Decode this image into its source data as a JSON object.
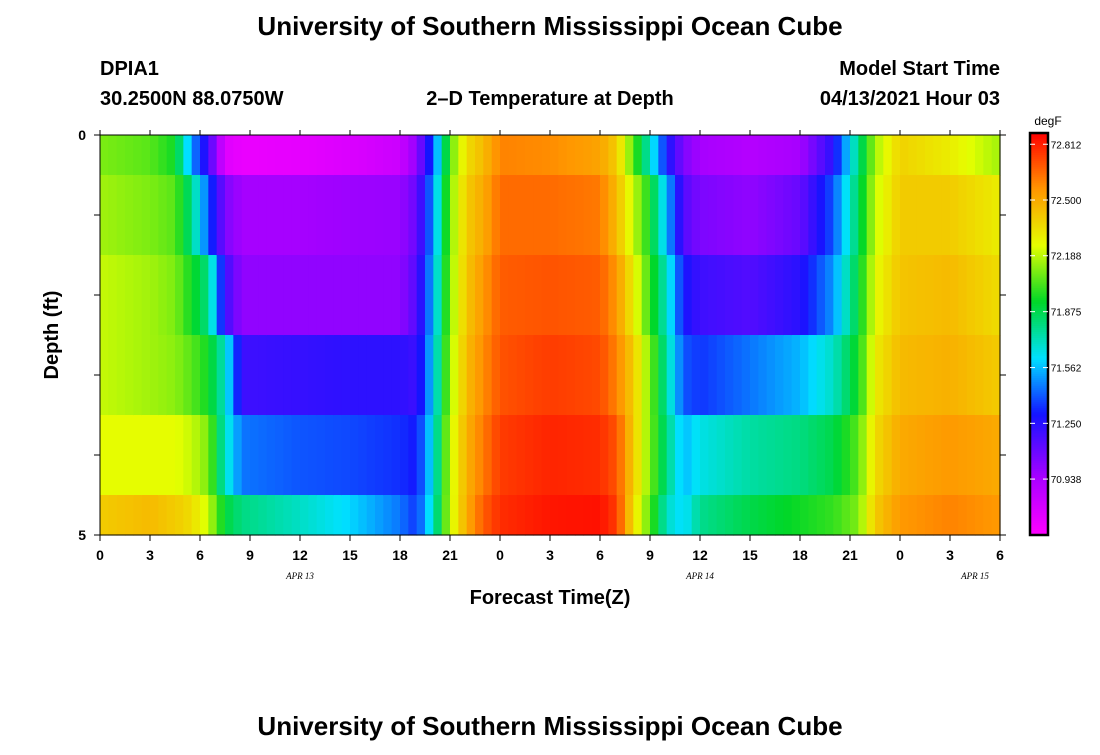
{
  "header": {
    "title": "University of Southern Mississippi Ocean Cube",
    "station_id": "DPIA1",
    "coordinates": "30.2500N  88.0750W",
    "subtitle": "2–D Temperature at Depth",
    "model_start_label": "Model Start Time",
    "model_start_value": "04/13/2021 Hour 03",
    "footer_title": "University of Southern Mississippi Ocean Cube"
  },
  "chart_data": {
    "type": "heatmap",
    "title": "2–D Temperature at Depth",
    "xlabel": "Forecast Time(Z)",
    "ylabel": "Depth (ft)",
    "x_ticks": [
      "0",
      "3",
      "6",
      "9",
      "12",
      "15",
      "18",
      "21",
      "0",
      "3",
      "6",
      "9",
      "12",
      "15",
      "18",
      "21",
      "0",
      "3",
      "6"
    ],
    "x_dates": [
      "APR  13",
      "APR  14",
      "APR  15"
    ],
    "x_range_hours": [
      0,
      54
    ],
    "y_ticks": [
      "0",
      "5"
    ],
    "y_range_ft": [
      0,
      5
    ],
    "depth_levels": 5,
    "colorbar": {
      "unit": "degF",
      "tick_labels": [
        "72.812",
        "72.500",
        "72.188",
        "71.875",
        "71.562",
        "71.250",
        "70.938"
      ],
      "ticks": [
        72.812,
        72.5,
        72.188,
        71.875,
        71.562,
        71.25,
        70.938
      ],
      "range": [
        70.625,
        72.875
      ]
    },
    "keyframes": [
      {
        "hour": 0,
        "temps": [
          72.1,
          72.15,
          72.2,
          72.2,
          72.25,
          72.4
        ]
      },
      {
        "hour": 3,
        "temps": [
          72.05,
          72.1,
          72.15,
          72.15,
          72.25,
          72.45
        ]
      },
      {
        "hour": 4.5,
        "temps": [
          71.95,
          72.05,
          72.1,
          72.12,
          72.25,
          72.4
        ]
      },
      {
        "hour": 5.5,
        "temps": [
          71.5,
          71.8,
          71.95,
          72.05,
          72.2,
          72.35
        ]
      },
      {
        "hour": 6.5,
        "temps": [
          71.2,
          71.4,
          71.8,
          71.95,
          72.1,
          72.2
        ]
      },
      {
        "hour": 7.5,
        "temps": [
          70.75,
          71.05,
          71.2,
          71.7,
          71.7,
          71.9
        ]
      },
      {
        "hour": 8.5,
        "temps": [
          70.7,
          70.95,
          71.0,
          71.2,
          71.45,
          71.8
        ]
      },
      {
        "hour": 12,
        "temps": [
          70.72,
          70.95,
          71.0,
          71.22,
          71.4,
          71.7
        ]
      },
      {
        "hour": 15,
        "temps": [
          70.76,
          70.97,
          71.0,
          71.24,
          71.38,
          71.6
        ]
      },
      {
        "hour": 18,
        "temps": [
          70.82,
          70.98,
          71.0,
          71.24,
          71.34,
          71.45
        ]
      },
      {
        "hour": 19,
        "temps": [
          71.0,
          71.1,
          71.15,
          71.2,
          71.3,
          71.35
        ]
      },
      {
        "hour": 20,
        "temps": [
          71.4,
          71.5,
          71.55,
          71.6,
          71.65,
          71.7
        ]
      },
      {
        "hour": 21,
        "temps": [
          72.05,
          72.1,
          72.12,
          72.15,
          72.2,
          72.2
        ]
      },
      {
        "hour": 22,
        "temps": [
          72.35,
          72.4,
          72.42,
          72.45,
          72.48,
          72.5
        ]
      },
      {
        "hour": 23,
        "temps": [
          72.45,
          72.5,
          72.55,
          72.58,
          72.62,
          72.68
        ]
      },
      {
        "hour": 24,
        "temps": [
          72.6,
          72.65,
          72.68,
          72.7,
          72.75,
          72.78
        ]
      },
      {
        "hour": 27,
        "temps": [
          72.58,
          72.65,
          72.7,
          72.75,
          72.8,
          72.83
        ]
      },
      {
        "hour": 30,
        "temps": [
          72.52,
          72.62,
          72.68,
          72.72,
          72.78,
          72.84
        ]
      },
      {
        "hour": 31,
        "temps": [
          72.4,
          72.45,
          72.55,
          72.6,
          72.7,
          72.75
        ]
      },
      {
        "hour": 32,
        "temps": [
          72.05,
          72.2,
          72.3,
          72.4,
          72.4,
          72.35
        ]
      },
      {
        "hour": 33,
        "temps": [
          71.7,
          71.95,
          72.0,
          72.1,
          72.1,
          72.05
        ]
      },
      {
        "hour": 34,
        "temps": [
          71.3,
          71.55,
          71.7,
          71.75,
          71.8,
          71.7
        ]
      },
      {
        "hour": 35,
        "temps": [
          71.05,
          71.15,
          71.3,
          71.4,
          71.55,
          71.6
        ]
      },
      {
        "hour": 36,
        "temps": [
          70.95,
          71.05,
          71.2,
          71.35,
          71.65,
          71.78
        ]
      },
      {
        "hour": 39,
        "temps": [
          70.9,
          71.0,
          71.15,
          71.45,
          71.75,
          71.88
        ]
      },
      {
        "hour": 42,
        "temps": [
          70.95,
          71.1,
          71.25,
          71.55,
          71.8,
          71.95
        ]
      },
      {
        "hour": 44,
        "temps": [
          71.25,
          71.4,
          71.5,
          71.7,
          71.88,
          72.0
        ]
      },
      {
        "hour": 45.5,
        "temps": [
          71.8,
          71.85,
          71.9,
          71.95,
          72.05,
          72.1
        ]
      },
      {
        "hour": 46.5,
        "temps": [
          72.15,
          72.2,
          72.25,
          72.3,
          72.35,
          72.4
        ]
      },
      {
        "hour": 48,
        "temps": [
          72.38,
          72.4,
          72.42,
          72.45,
          72.5,
          72.55
        ]
      },
      {
        "hour": 51,
        "temps": [
          72.3,
          72.4,
          72.45,
          72.48,
          72.55,
          72.6
        ]
      },
      {
        "hour": 54,
        "temps": [
          72.15,
          72.3,
          72.35,
          72.4,
          72.5,
          72.55
        ]
      }
    ]
  }
}
